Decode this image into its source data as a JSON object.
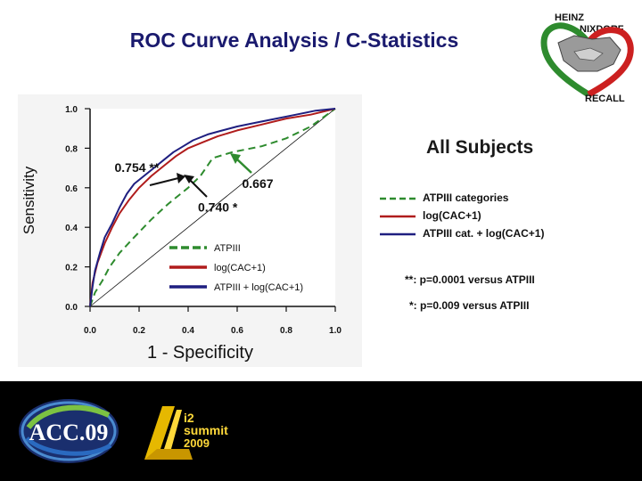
{
  "slide": {
    "title": "ROC Curve Analysis / C-Statistics",
    "subset_title": "All Subjects",
    "notes": [
      "**: p=0.0001 versus ATPIII",
      "*: p=0.009 versus ATPIII"
    ],
    "logos": {
      "top_right": [
        "HEINZ",
        "NIXDORF",
        "RECALL"
      ],
      "bottom_left": "ACC.09",
      "bottom_center": [
        "i2",
        "summit",
        "2009"
      ]
    },
    "legend_right": [
      {
        "label": "ATPIII categories",
        "color": "#2e8b2e",
        "style": "dash"
      },
      {
        "label": "log(CAC+1)",
        "color": "#b01c1c",
        "style": "solid"
      },
      {
        "label": "ATPIII cat. + log(CAC+1)",
        "color": "#1f1f80",
        "style": "solid"
      }
    ]
  },
  "chart_data": {
    "type": "line",
    "xlabel": "1 - Specificity",
    "ylabel": "Sensitivity",
    "xlim": [
      0,
      1
    ],
    "ylim": [
      0,
      1
    ],
    "xticks": [
      "0.0",
      "0.2",
      "0.4",
      "0.6",
      "0.8",
      "1.0"
    ],
    "yticks": [
      "0.0",
      "0.2",
      "0.4",
      "0.6",
      "0.8",
      "1.0"
    ],
    "annotations": [
      {
        "text": "0.754 **",
        "x": 0.1,
        "y": 0.68
      },
      {
        "text": "0.667",
        "x": 0.62,
        "y": 0.6
      },
      {
        "text": "0.740 *",
        "x": 0.44,
        "y": 0.48
      }
    ],
    "series": [
      {
        "name": "ATPIII",
        "color": "#2e8b2e",
        "dash": true,
        "x": [
          0,
          0.02,
          0.05,
          0.08,
          0.12,
          0.18,
          0.25,
          0.32,
          0.4,
          0.45,
          0.5,
          0.58,
          0.7,
          0.8,
          0.9,
          1.0
        ],
        "y": [
          0,
          0.07,
          0.13,
          0.2,
          0.27,
          0.35,
          0.44,
          0.52,
          0.6,
          0.66,
          0.75,
          0.78,
          0.81,
          0.85,
          0.91,
          1.0
        ]
      },
      {
        "name": "log(CAC+1)",
        "color": "#b01c1c",
        "dash": false,
        "x": [
          0,
          0.01,
          0.03,
          0.06,
          0.09,
          0.12,
          0.16,
          0.2,
          0.25,
          0.3,
          0.35,
          0.4,
          0.46,
          0.52,
          0.6,
          0.7,
          0.8,
          0.9,
          1.0
        ],
        "y": [
          0,
          0.12,
          0.22,
          0.32,
          0.4,
          0.47,
          0.54,
          0.6,
          0.66,
          0.71,
          0.76,
          0.8,
          0.83,
          0.86,
          0.89,
          0.92,
          0.95,
          0.97,
          1.0
        ]
      },
      {
        "name": "ATPIII + log(CAC+1)",
        "color": "#1f1f80",
        "dash": false,
        "x": [
          0,
          0.01,
          0.02,
          0.04,
          0.06,
          0.09,
          0.12,
          0.15,
          0.18,
          0.22,
          0.26,
          0.3,
          0.34,
          0.38,
          0.42,
          0.48,
          0.54,
          0.6,
          0.68,
          0.76,
          0.84,
          0.92,
          1.0
        ],
        "y": [
          0,
          0.1,
          0.18,
          0.27,
          0.35,
          0.42,
          0.5,
          0.57,
          0.62,
          0.66,
          0.7,
          0.74,
          0.78,
          0.81,
          0.84,
          0.87,
          0.89,
          0.91,
          0.93,
          0.95,
          0.97,
          0.99,
          1.0
        ]
      }
    ]
  }
}
